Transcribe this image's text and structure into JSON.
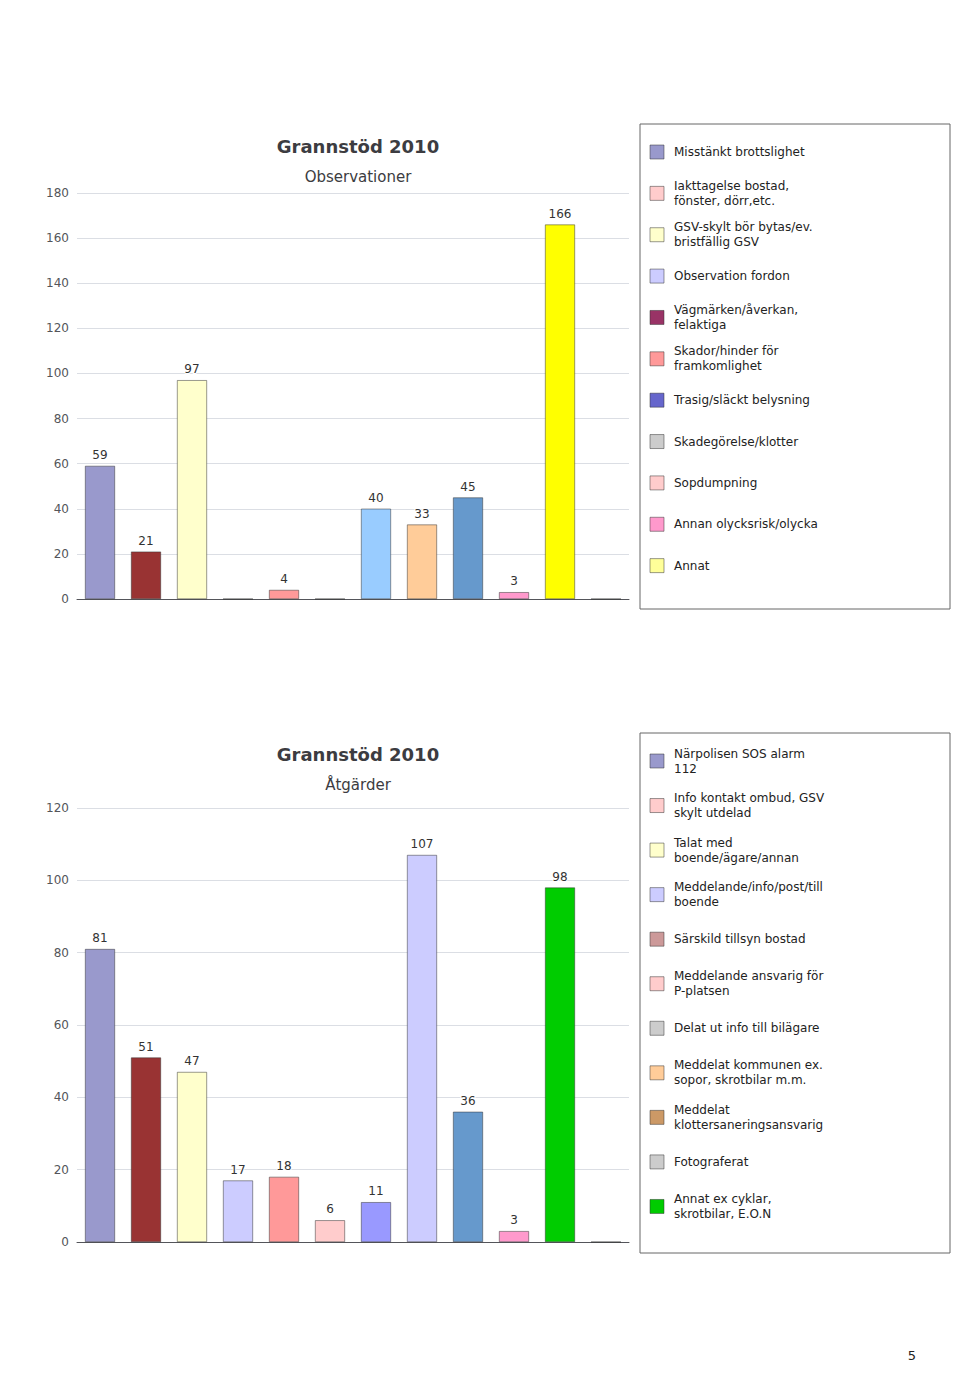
{
  "chart_data": [
    {
      "type": "bar",
      "title": "Grannstöd 2010",
      "subtitle": "Observationer",
      "categories": [
        null,
        null,
        null,
        null,
        null,
        null,
        null,
        null,
        null,
        null,
        null,
        null
      ],
      "values": [
        59,
        21,
        97,
        0,
        4,
        0,
        40,
        33,
        45,
        3,
        166,
        0
      ],
      "colors": [
        "#9999cc",
        "#993333",
        "#ffffcc",
        "#ccccff",
        "#ff9999",
        "#cc3399",
        "#99ccff",
        "#ffcc99",
        "#6699cc",
        "#ff99cc",
        "#ffff00",
        "#ffff99"
      ],
      "data_labels": true,
      "value_labels": [
        "59",
        "21",
        "97",
        null,
        "4",
        null,
        "40",
        "33",
        "45",
        "3",
        "166",
        null
      ],
      "ylim": [
        0,
        180
      ],
      "yticks": [
        0,
        20,
        40,
        60,
        80,
        100,
        120,
        140,
        160,
        180
      ],
      "grid": true,
      "tick_labels": "y",
      "annotations": [
        {
          "text": "Misstänkt brottslighet",
          "color": "#9999cc"
        },
        {
          "text": "Iakttagelse bostad,\nfönster, dörr,etc.",
          "color": "#ffcccc"
        },
        {
          "text": "GSV-skylt bör bytas/ev.\nbristfällig GSV",
          "color": "#ffffcc"
        },
        {
          "text": "Observation fordon",
          "color": "#ccccff"
        },
        {
          "text": "Vägmärken/åverkan,\nfelaktiga",
          "color": "#993366"
        },
        {
          "text": "Skador/hinder för\nframkomlighet",
          "color": "#ff9999"
        },
        {
          "text": "Trasig/släckt belysning",
          "color": "#6666cc"
        },
        {
          "text": "Skadegörelse/klotter",
          "color": "#cccccc"
        },
        {
          "text": "Sopdumpning",
          "color": "#ffcccc"
        },
        {
          "text": "Annan olycksrisk/olycka",
          "color": "#ff99cc"
        },
        {
          "text": "Annat",
          "color": "#ffff99"
        }
      ]
    },
    {
      "type": "bar",
      "title": "Grannstöd 2010",
      "subtitle": "Åtgärder",
      "categories": [
        null,
        null,
        null,
        null,
        null,
        null,
        null,
        null,
        null,
        null,
        null,
        null
      ],
      "values": [
        81,
        51,
        47,
        17,
        18,
        6,
        11,
        107,
        36,
        3,
        98,
        0
      ],
      "colors": [
        "#9999cc",
        "#993333",
        "#ffffcc",
        "#ccccff",
        "#ff9999",
        "#ffcccc",
        "#9999ff",
        "#ccccff",
        "#6699cc",
        "#ff99cc",
        "#00cc00",
        "#ffffff"
      ],
      "data_labels": true,
      "value_labels": [
        "81",
        "51",
        "47",
        "17",
        "18",
        "6",
        "11",
        "107",
        "36",
        "3",
        "98",
        null
      ],
      "ylim": [
        0,
        120
      ],
      "yticks": [
        0,
        20,
        40,
        60,
        80,
        100,
        120
      ],
      "grid": true,
      "tick_labels": "y",
      "annotations": [
        {
          "text": "Närpolisen SOS alarm\n112",
          "color": "#9999cc"
        },
        {
          "text": "Info kontakt ombud, GSV\nskylt utdelad",
          "color": "#ffcccc"
        },
        {
          "text": "Talat med\nboende/ägare/annan",
          "color": "#ffffcc"
        },
        {
          "text": "Meddelande/info/post/till\nboende",
          "color": "#ccccff"
        },
        {
          "text": "Särskild tillsyn bostad",
          "color": "#cc9999"
        },
        {
          "text": "Meddelande ansvarig för\nP-platsen",
          "color": "#ffcccc"
        },
        {
          "text": "Delat ut info till bilägare",
          "color": "#cccccc"
        },
        {
          "text": "Meddelat kommunen ex.\nsopor, skrotbilar m.m.",
          "color": "#ffcc99"
        },
        {
          "text": "Meddelat\nklottersaneringsansvarig",
          "color": "#cc9966"
        },
        {
          "text": "Fotograferat",
          "color": "#cccccc"
        },
        {
          "text": "Annat ex cyklar,\nskrotbilar, E.O.N",
          "color": "#00cc00"
        },
        {
          "text": "5"
        }
      ]
    }
  ]
}
